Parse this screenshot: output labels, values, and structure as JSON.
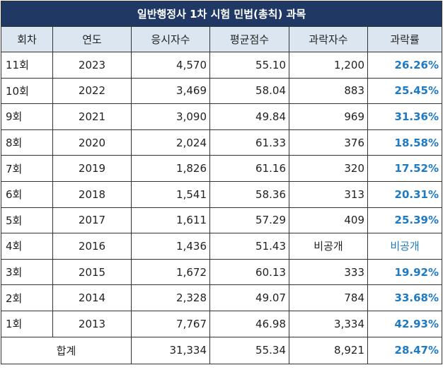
{
  "title": "일반행정사 1차 시험 민법(총칙) 과목",
  "colors": {
    "title_bg": "#1f3864",
    "title_text": "#ffffff",
    "header_bg": "#dce6f1",
    "rate_text": "#1f7ac4"
  },
  "columns": [
    "회차",
    "연도",
    "응시자수",
    "평균점수",
    "과락자수",
    "과락률"
  ],
  "rows": [
    {
      "round": "11회",
      "year": "2023",
      "applicants": "4,570",
      "avg": "55.10",
      "fail": "1,200",
      "rate": "26.26%"
    },
    {
      "round": "10회",
      "year": "2022",
      "applicants": "3,469",
      "avg": "58.04",
      "fail": "883",
      "rate": "25.45%"
    },
    {
      "round": "9회",
      "year": "2021",
      "applicants": "3,090",
      "avg": "49.84",
      "fail": "969",
      "rate": "31.36%"
    },
    {
      "round": "8회",
      "year": "2020",
      "applicants": "2,024",
      "avg": "61.33",
      "fail": "376",
      "rate": "18.58%"
    },
    {
      "round": "7회",
      "year": "2019",
      "applicants": "1,826",
      "avg": "61.16",
      "fail": "320",
      "rate": "17.52%"
    },
    {
      "round": "6회",
      "year": "2018",
      "applicants": "1,541",
      "avg": "58.36",
      "fail": "313",
      "rate": "20.31%"
    },
    {
      "round": "5회",
      "year": "2017",
      "applicants": "1,611",
      "avg": "57.29",
      "fail": "409",
      "rate": "25.39%"
    },
    {
      "round": "4회",
      "year": "2016",
      "applicants": "1,436",
      "avg": "51.43",
      "fail": "비공개",
      "rate": "비공개"
    },
    {
      "round": "3회",
      "year": "2015",
      "applicants": "1,672",
      "avg": "60.13",
      "fail": "333",
      "rate": "19.92%"
    },
    {
      "round": "2회",
      "year": "2014",
      "applicants": "2,328",
      "avg": "49.07",
      "fail": "784",
      "rate": "33.68%"
    },
    {
      "round": "1회",
      "year": "2013",
      "applicants": "7,767",
      "avg": "46.98",
      "fail": "3,334",
      "rate": "42.93%"
    }
  ],
  "total": {
    "label": "합계",
    "applicants": "31,334",
    "avg": "55.34",
    "fail": "8,921",
    "rate": "28.47%"
  }
}
